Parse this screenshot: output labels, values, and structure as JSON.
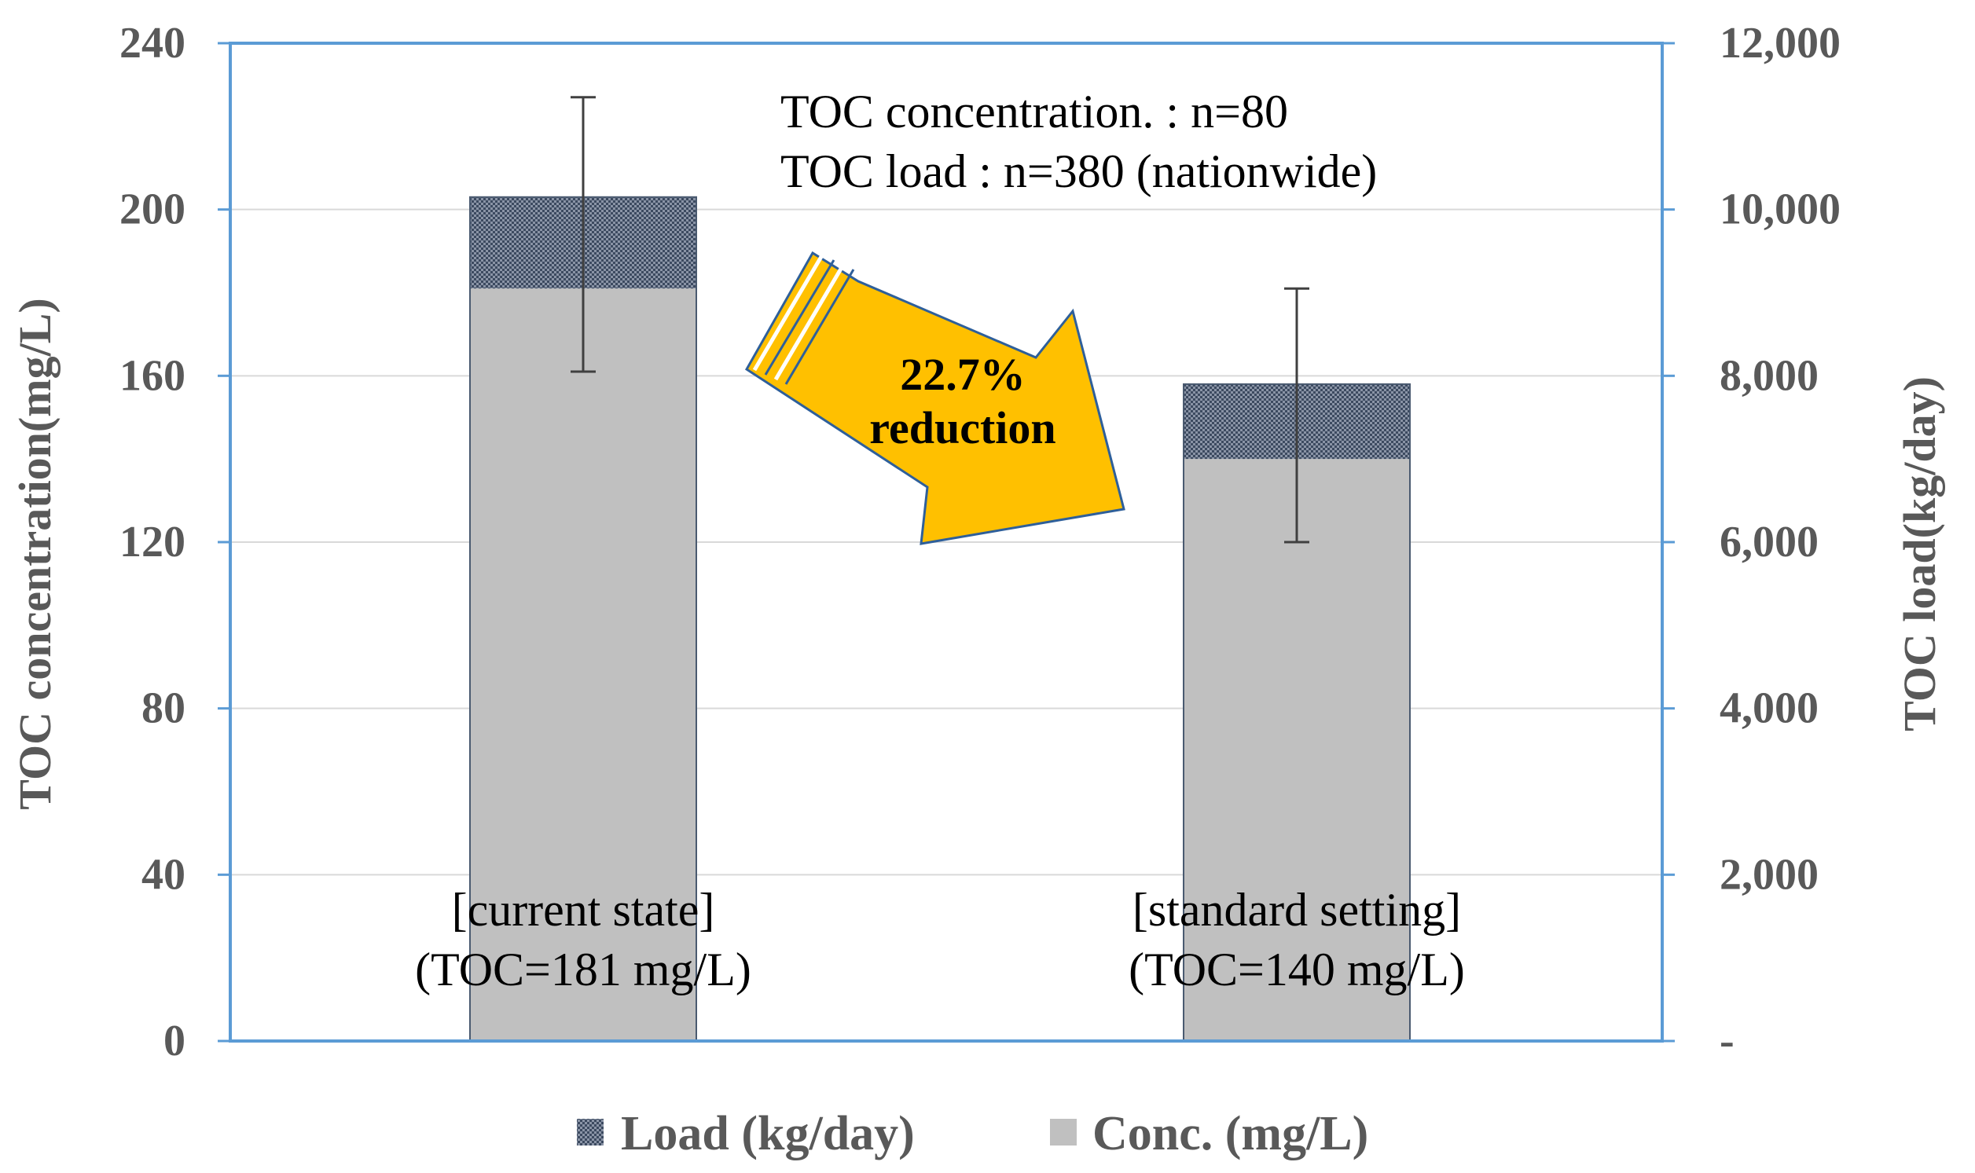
{
  "chart_data": {
    "type": "bar",
    "stacked": true,
    "categories": [
      "current state",
      "standard setting"
    ],
    "category_labels": [
      {
        "line1": "[current state]",
        "line2": "(TOC=181 mg/L)"
      },
      {
        "line1": "[standard setting]",
        "line2": "(TOC=140 mg/L)"
      }
    ],
    "series": [
      {
        "name": "Conc. (mg/L)",
        "axis": "left",
        "values": [
          181,
          140
        ],
        "color": "#c0c0c0"
      },
      {
        "name": "Load (kg/day)",
        "axis": "left",
        "values": [
          22,
          18
        ],
        "color": "#3c4a60"
      }
    ],
    "error_bars": [
      {
        "center": 194,
        "low": 161,
        "high": 227
      },
      {
        "center": 150,
        "low": 120,
        "high": 181
      }
    ],
    "left_axis": {
      "title": "TOC concentration(mg/L)",
      "ylim": [
        0,
        240
      ],
      "ticks": [
        "0",
        "40",
        "80",
        "120",
        "160",
        "200",
        "240"
      ]
    },
    "right_axis": {
      "title": "TOC load(kg/day)",
      "ylim": [
        0,
        12000
      ],
      "ticks": [
        "-",
        "2,000",
        "4,000",
        "6,000",
        "8,000",
        "10,000",
        "12,000"
      ]
    },
    "annotations": {
      "note_line1": "TOC concentration. : n=80",
      "note_line2": "TOC load : n=380 (nationwide)",
      "arrow_line1": "22.7%",
      "arrow_line2": "reduction"
    },
    "legend": {
      "position": "bottom",
      "items": [
        "Load (kg/day)",
        "Conc. (mg/L)"
      ]
    },
    "grid": true
  },
  "colors": {
    "axis_line": "#5b9bd5",
    "grid": "#d9d9d9",
    "arrow_fill": "#ffc000",
    "arrow_stroke": "#2e5f9a",
    "error_bar": "#404040"
  }
}
